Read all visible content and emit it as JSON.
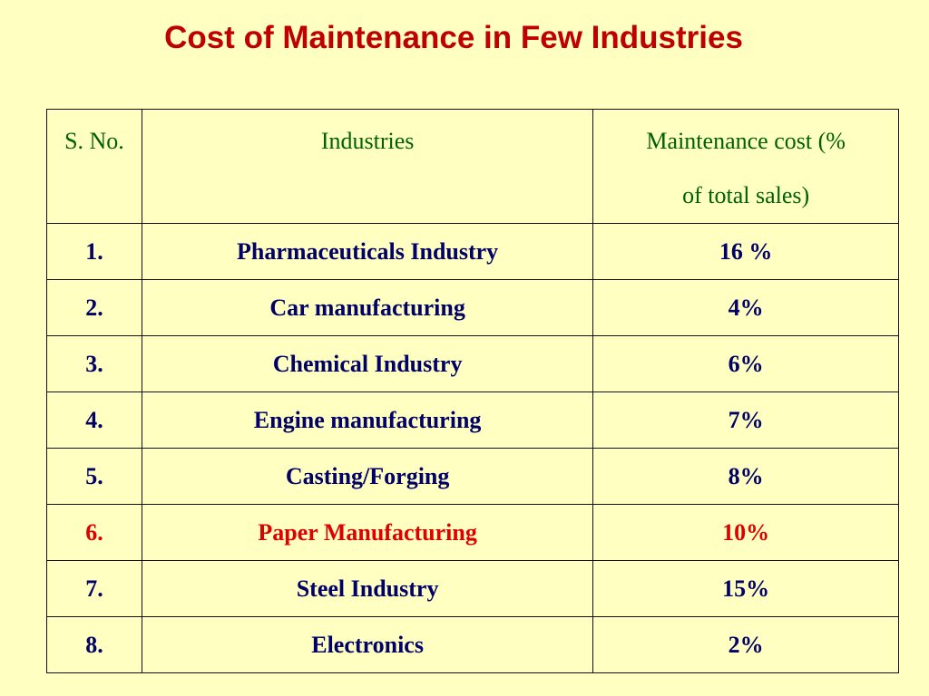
{
  "title": "Cost of Maintenance in Few Industries",
  "table": {
    "headers": {
      "sno": "S. No.",
      "industry": "Industries",
      "cost_line1": "Maintenance cost (%",
      "cost_line2": "of total sales)"
    },
    "rows": [
      {
        "sno": "1.",
        "industry": "Pharmaceuticals Industry",
        "cost": "16 %"
      },
      {
        "sno": "2.",
        "industry": "Car manufacturing",
        "cost": "4%"
      },
      {
        "sno": "3.",
        "industry": "Chemical Industry",
        "cost": "6%"
      },
      {
        "sno": "4.",
        "industry": "Engine manufacturing",
        "cost": "7%"
      },
      {
        "sno": "5.",
        "industry": "Casting/Forging",
        "cost": "8%"
      },
      {
        "sno": "6.",
        "industry": "Paper Manufacturing",
        "cost": "10%",
        "highlighted": true
      },
      {
        "sno": "7.",
        "industry": "Steel Industry",
        "cost": "15%"
      },
      {
        "sno": "8.",
        "industry": "Electronics",
        "cost": "2%"
      }
    ]
  },
  "colors": {
    "background": "#ffffc2",
    "title": "#c00000",
    "header_text": "#006100",
    "body_text": "#000066",
    "highlight_text": "#e00000"
  }
}
